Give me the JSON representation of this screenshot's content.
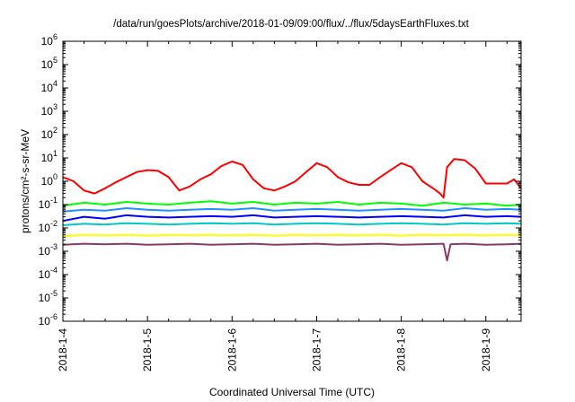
{
  "chart_data": {
    "type": "line",
    "title": "/data/run/goesPlots/archive/2018-01-09/09:00/flux/../flux/5daysEarthFluxes.txt",
    "xlabel": "Coordinated Universal Time (UTC)",
    "ylabel": "protons/cm²-s-sr-MeV",
    "y_scale": "log",
    "ylim": [
      1e-06,
      1000000.0
    ],
    "xlim": [
      "2018-01-04 00:00",
      "2018-01-09 10:00"
    ],
    "grid": false,
    "legend": "none",
    "x_ticks": [
      "2018-1-4",
      "2018-1-5",
      "2018-1-6",
      "2018-1-7",
      "2018-1-8",
      "2018-1-9"
    ],
    "y_ticks": [
      {
        "base": "10",
        "exp": "-6"
      },
      {
        "base": "10",
        "exp": "-5"
      },
      {
        "base": "10",
        "exp": "-4"
      },
      {
        "base": "10",
        "exp": "-3"
      },
      {
        "base": "10",
        "exp": "-2"
      },
      {
        "base": "10",
        "exp": "-1"
      },
      {
        "base": "10",
        "exp": "0"
      },
      {
        "base": "10",
        "exp": "1"
      },
      {
        "base": "10",
        "exp": "2"
      },
      {
        "base": "10",
        "exp": "3"
      },
      {
        "base": "10",
        "exp": "4"
      },
      {
        "base": "10",
        "exp": "5"
      },
      {
        "base": "10",
        "exp": "6"
      }
    ],
    "series": [
      {
        "color": "#ff0000",
        "x": [
          "2018-01-04 00:00",
          "2018-01-04 03:00",
          "2018-01-04 06:00",
          "2018-01-04 09:00",
          "2018-01-04 12:00",
          "2018-01-04 15:00",
          "2018-01-04 18:00",
          "2018-01-04 21:00",
          "2018-01-05 00:00",
          "2018-01-05 03:00",
          "2018-01-05 06:00",
          "2018-01-05 09:00",
          "2018-01-05 12:00",
          "2018-01-05 15:00",
          "2018-01-05 18:00",
          "2018-01-05 21:00",
          "2018-01-06 00:00",
          "2018-01-06 03:00",
          "2018-01-06 06:00",
          "2018-01-06 09:00",
          "2018-01-06 12:00",
          "2018-01-06 15:00",
          "2018-01-06 18:00",
          "2018-01-06 21:00",
          "2018-01-07 00:00",
          "2018-01-07 03:00",
          "2018-01-07 06:00",
          "2018-01-07 09:00",
          "2018-01-07 12:00",
          "2018-01-07 15:00",
          "2018-01-07 18:00",
          "2018-01-07 21:00",
          "2018-01-08 00:00",
          "2018-01-08 03:00",
          "2018-01-08 06:00",
          "2018-01-08 09:00",
          "2018-01-08 11:00",
          "2018-01-08 12:00",
          "2018-01-08 13:00",
          "2018-01-08 15:00",
          "2018-01-08 18:00",
          "2018-01-08 21:00",
          "2018-01-09 00:00",
          "2018-01-09 03:00",
          "2018-01-09 06:00",
          "2018-01-09 08:00",
          "2018-01-09 10:00"
        ],
        "y": [
          1.5,
          1.0,
          0.4,
          0.3,
          0.5,
          0.9,
          1.5,
          2.5,
          3.0,
          2.8,
          1.5,
          0.4,
          0.6,
          1.2,
          2.0,
          4.5,
          7.0,
          5.0,
          1.2,
          0.5,
          0.4,
          0.6,
          1.0,
          2.5,
          6.0,
          4.0,
          1.5,
          0.9,
          0.7,
          0.7,
          1.5,
          3.0,
          6.0,
          4.0,
          1.0,
          0.5,
          0.3,
          0.2,
          4.0,
          9.0,
          8.0,
          3.5,
          0.8,
          0.8,
          0.8,
          1.2,
          0.5
        ]
      },
      {
        "color": "#00ff00",
        "x": [
          "2018-01-04 00:00",
          "2018-01-04 06:00",
          "2018-01-04 12:00",
          "2018-01-04 18:00",
          "2018-01-05 00:00",
          "2018-01-05 06:00",
          "2018-01-05 12:00",
          "2018-01-05 18:00",
          "2018-01-06 00:00",
          "2018-01-06 06:00",
          "2018-01-06 12:00",
          "2018-01-06 18:00",
          "2018-01-07 00:00",
          "2018-01-07 06:00",
          "2018-01-07 12:00",
          "2018-01-07 18:00",
          "2018-01-08 00:00",
          "2018-01-08 06:00",
          "2018-01-08 12:00",
          "2018-01-08 18:00",
          "2018-01-09 00:00",
          "2018-01-09 06:00",
          "2018-01-09 10:00"
        ],
        "y": [
          0.09,
          0.12,
          0.1,
          0.13,
          0.11,
          0.1,
          0.12,
          0.14,
          0.11,
          0.13,
          0.1,
          0.12,
          0.11,
          0.13,
          0.1,
          0.12,
          0.11,
          0.09,
          0.12,
          0.1,
          0.11,
          0.09,
          0.1
        ]
      },
      {
        "color": "#0000ff",
        "x": [
          "2018-01-04 00:00",
          "2018-01-04 06:00",
          "2018-01-04 12:00",
          "2018-01-04 18:00",
          "2018-01-05 00:00",
          "2018-01-05 06:00",
          "2018-01-05 12:00",
          "2018-01-05 18:00",
          "2018-01-06 00:00",
          "2018-01-06 06:00",
          "2018-01-06 12:00",
          "2018-01-06 18:00",
          "2018-01-07 00:00",
          "2018-01-07 06:00",
          "2018-01-07 12:00",
          "2018-01-07 18:00",
          "2018-01-08 00:00",
          "2018-01-08 06:00",
          "2018-01-08 12:00",
          "2018-01-08 18:00",
          "2018-01-09 00:00",
          "2018-01-09 06:00",
          "2018-01-09 10:00"
        ],
        "y": [
          0.02,
          0.03,
          0.025,
          0.035,
          0.03,
          0.028,
          0.03,
          0.032,
          0.03,
          0.035,
          0.028,
          0.03,
          0.032,
          0.03,
          0.028,
          0.03,
          0.032,
          0.03,
          0.028,
          0.035,
          0.03,
          0.032,
          0.03
        ]
      },
      {
        "color": "#1e90ff",
        "x": [
          "2018-01-04 00:00",
          "2018-01-04 06:00",
          "2018-01-04 12:00",
          "2018-01-04 18:00",
          "2018-01-05 00:00",
          "2018-01-05 06:00",
          "2018-01-05 12:00",
          "2018-01-05 18:00",
          "2018-01-06 00:00",
          "2018-01-06 06:00",
          "2018-01-06 12:00",
          "2018-01-06 18:00",
          "2018-01-07 00:00",
          "2018-01-07 06:00",
          "2018-01-07 12:00",
          "2018-01-07 18:00",
          "2018-01-08 00:00",
          "2018-01-08 06:00",
          "2018-01-08 12:00",
          "2018-01-08 18:00",
          "2018-01-09 00:00",
          "2018-01-09 06:00",
          "2018-01-09 10:00"
        ],
        "y": [
          0.05,
          0.06,
          0.055,
          0.07,
          0.06,
          0.055,
          0.06,
          0.065,
          0.06,
          0.07,
          0.055,
          0.06,
          0.065,
          0.06,
          0.055,
          0.06,
          0.065,
          0.06,
          0.055,
          0.07,
          0.06,
          0.065,
          0.06
        ]
      },
      {
        "color": "#00c8c8",
        "x": [
          "2018-01-04 00:00",
          "2018-01-04 06:00",
          "2018-01-04 12:00",
          "2018-01-04 18:00",
          "2018-01-05 00:00",
          "2018-01-05 06:00",
          "2018-01-05 12:00",
          "2018-01-05 18:00",
          "2018-01-06 00:00",
          "2018-01-06 06:00",
          "2018-01-06 12:00",
          "2018-01-06 18:00",
          "2018-01-07 00:00",
          "2018-01-07 06:00",
          "2018-01-07 12:00",
          "2018-01-07 18:00",
          "2018-01-08 00:00",
          "2018-01-08 06:00",
          "2018-01-08 12:00",
          "2018-01-08 18:00",
          "2018-01-09 00:00",
          "2018-01-09 06:00",
          "2018-01-09 10:00"
        ],
        "y": [
          0.013,
          0.015,
          0.014,
          0.016,
          0.015,
          0.014,
          0.015,
          0.016,
          0.015,
          0.016,
          0.014,
          0.015,
          0.016,
          0.015,
          0.014,
          0.015,
          0.016,
          0.015,
          0.014,
          0.016,
          0.015,
          0.016,
          0.015
        ]
      },
      {
        "color": "#ffff00",
        "x": [
          "2018-01-04 00:00",
          "2018-01-04 06:00",
          "2018-01-04 12:00",
          "2018-01-04 18:00",
          "2018-01-05 00:00",
          "2018-01-05 06:00",
          "2018-01-05 12:00",
          "2018-01-05 18:00",
          "2018-01-06 00:00",
          "2018-01-06 06:00",
          "2018-01-06 12:00",
          "2018-01-06 18:00",
          "2018-01-07 00:00",
          "2018-01-07 06:00",
          "2018-01-07 12:00",
          "2018-01-07 18:00",
          "2018-01-08 00:00",
          "2018-01-08 06:00",
          "2018-01-08 12:00",
          "2018-01-08 18:00",
          "2018-01-09 00:00",
          "2018-01-09 06:00",
          "2018-01-09 10:00"
        ],
        "y": [
          0.0045,
          0.005,
          0.0048,
          0.005,
          0.0047,
          0.005,
          0.0049,
          0.005,
          0.0048,
          0.005,
          0.0047,
          0.005,
          0.0049,
          0.005,
          0.0048,
          0.005,
          0.0047,
          0.005,
          0.0049,
          0.005,
          0.0048,
          0.005,
          0.0049
        ]
      },
      {
        "color": "#8b3a62",
        "x": [
          "2018-01-04 00:00",
          "2018-01-04 06:00",
          "2018-01-04 12:00",
          "2018-01-04 18:00",
          "2018-01-05 00:00",
          "2018-01-05 06:00",
          "2018-01-05 12:00",
          "2018-01-05 18:00",
          "2018-01-06 00:00",
          "2018-01-06 06:00",
          "2018-01-06 12:00",
          "2018-01-06 18:00",
          "2018-01-07 00:00",
          "2018-01-07 06:00",
          "2018-01-07 12:00",
          "2018-01-07 18:00",
          "2018-01-08 00:00",
          "2018-01-08 06:00",
          "2018-01-08 12:00",
          "2018-01-08 13:00",
          "2018-01-08 14:00",
          "2018-01-08 18:00",
          "2018-01-09 00:00",
          "2018-01-09 06:00",
          "2018-01-09 10:00"
        ],
        "y": [
          0.0019,
          0.0021,
          0.002,
          0.0021,
          0.0019,
          0.002,
          0.0021,
          0.0019,
          0.002,
          0.0021,
          0.0019,
          0.002,
          0.0021,
          0.0019,
          0.002,
          0.0021,
          0.0019,
          0.002,
          0.0021,
          0.0004,
          0.002,
          0.0021,
          0.0019,
          0.002,
          0.0021
        ]
      }
    ]
  }
}
